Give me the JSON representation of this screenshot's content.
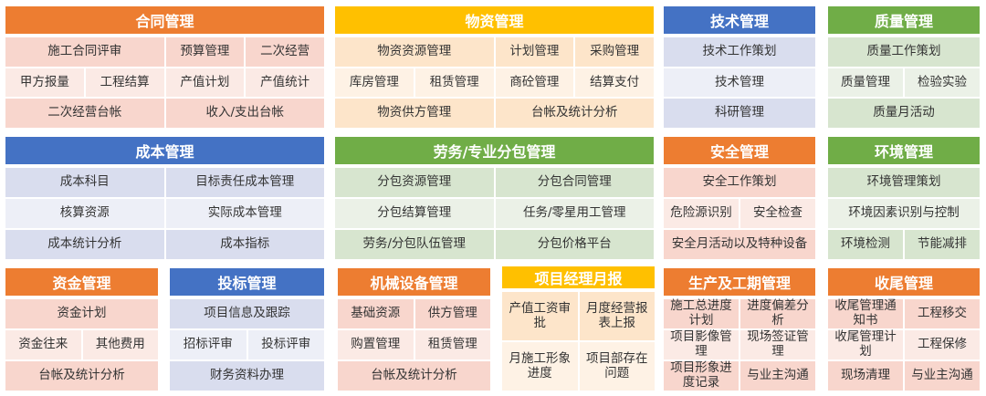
{
  "colors": {
    "orange": {
      "header": "#ED7D31",
      "dark": "#F8D6CD",
      "light": "#FBEAE5"
    },
    "yellow": {
      "header": "#FFC000",
      "dark": "#FDE5CA",
      "light": "#FEF2E5"
    },
    "blue": {
      "header": "#4472C4",
      "dark": "#D9DDEE",
      "light": "#EDEFF7"
    },
    "green": {
      "header": "#70AD47",
      "dark": "#D7E5CF",
      "light": "#EBF1E7"
    }
  },
  "panels": [
    {
      "title": "合同管理",
      "color": "orange",
      "rows": [
        [
          "施工合同评审",
          "预算管理",
          "二次经营"
        ],
        [
          "甲方报量",
          "工程结算",
          "产值计划",
          "产值统计"
        ],
        [
          "二次经营台帐",
          "收入/支出台帐"
        ]
      ]
    },
    {
      "title": "物资管理",
      "color": "yellow",
      "rows": [
        [
          "物资资源管理",
          "计划管理",
          "采购管理"
        ],
        [
          "库房管理",
          "租赁管理",
          "商砼管理",
          "结算支付"
        ],
        [
          "物资供方管理",
          "台帐及统计分析"
        ]
      ]
    },
    {
      "title": "技术管理",
      "color": "blue",
      "rows": [
        [
          "技术工作策划"
        ],
        [
          "技术管理"
        ],
        [
          "科研管理"
        ]
      ]
    },
    {
      "title": "质量管理",
      "color": "green",
      "rows": [
        [
          "质量工作策划"
        ],
        [
          "质量管理",
          "检验实验"
        ],
        [
          "质量月活动"
        ]
      ]
    },
    {
      "title": "成本管理",
      "color": "blue",
      "rows": [
        [
          "成本科目",
          "目标责任成本管理"
        ],
        [
          "核算资源",
          "实际成本管理"
        ],
        [
          "成本统计分析",
          "成本指标"
        ]
      ]
    },
    {
      "title": "劳务/专业分包管理",
      "color": "green",
      "rows": [
        [
          "分包资源管理",
          "分包合同管理"
        ],
        [
          "分包结算管理",
          "任务/零星用工管理"
        ],
        [
          "劳务/分包队伍管理",
          "分包价格平台"
        ]
      ]
    },
    {
      "title": "安全管理",
      "color": "orange",
      "rows": [
        [
          "安全工作策划"
        ],
        [
          "危险源识别",
          "安全检查"
        ],
        [
          "安全月活动以及特种设备"
        ]
      ]
    },
    {
      "title": "环境管理",
      "color": "green",
      "rows": [
        [
          "环境管理策划"
        ],
        [
          "环境因素识别与控制"
        ],
        [
          "环境检测",
          "节能减排"
        ]
      ]
    },
    {
      "title": "资金管理",
      "color": "orange",
      "rows": [
        [
          "资金计划"
        ],
        [
          "资金往来",
          "其他费用"
        ],
        [
          "台帐及统计分析"
        ]
      ]
    },
    {
      "title": "投标管理",
      "color": "blue",
      "rows": [
        [
          "项目信息及跟踪"
        ],
        [
          "招标评审",
          "投标评审"
        ],
        [
          "财务资料办理"
        ]
      ]
    },
    {
      "title": "机械设备管理",
      "color": "orange",
      "rows": [
        [
          "基础资源",
          "供方管理"
        ],
        [
          "购置管理",
          "租赁管理"
        ],
        [
          "台帐及统计分析"
        ]
      ]
    },
    {
      "title": "项目经理月报",
      "color": "yellow",
      "rows": [
        [
          "产值工资审批",
          "月度经营报表上报"
        ],
        [
          "月施工形象进度",
          "项目部存在问题"
        ]
      ]
    },
    {
      "title": "生产及工期管理",
      "color": "orange",
      "rows": [
        [
          "施工总进度计划",
          "进度偏差分析"
        ],
        [
          "项目影像管理",
          "现场签证管理"
        ],
        [
          "项目形象进度记录",
          "与业主沟通"
        ]
      ]
    },
    {
      "title": "收尾管理",
      "color": "orange",
      "rows": [
        [
          "收尾管理通知书",
          "工程移交"
        ],
        [
          "收尾管理计划",
          "工程保修"
        ],
        [
          "现场清理",
          "与业主沟通"
        ]
      ]
    }
  ]
}
